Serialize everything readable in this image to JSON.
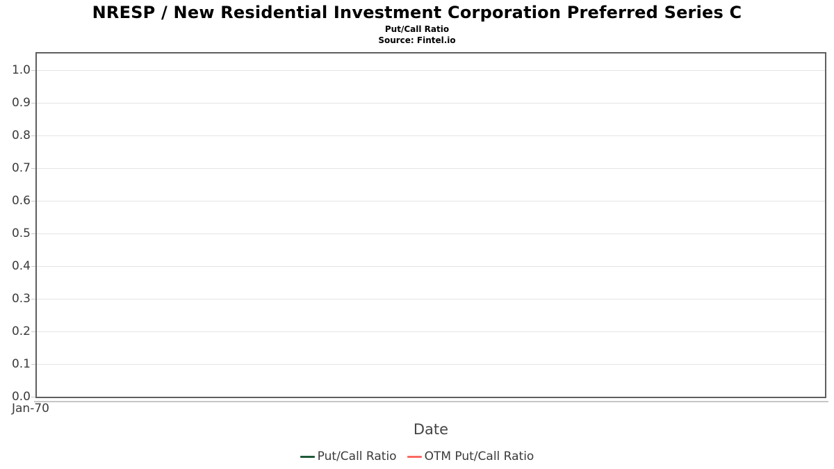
{
  "chart_data": {
    "type": "line",
    "title": "NRESP / New Residential Investment Corporation Preferred Series C",
    "subtitle": "Put/Call Ratio",
    "source": "Source: Fintel.io",
    "xlabel": "Date",
    "x_tick_labels": [
      "Jan-70"
    ],
    "y_ticks": [
      0.0,
      0.1,
      0.2,
      0.3,
      0.4,
      0.5,
      0.6,
      0.7,
      0.8,
      0.9,
      1.0
    ],
    "ylim": [
      0,
      1.05
    ],
    "grid": "horizontal-only",
    "legend_position": "bottom",
    "series": [
      {
        "name": "Put/Call Ratio",
        "color": "#1e5a37",
        "points": []
      },
      {
        "name": "OTM Put/Call Ratio",
        "color": "#fb6a62",
        "points": []
      }
    ]
  },
  "style": {
    "background": "#ffffff",
    "plot_border_color": "#5e5e5e",
    "gridline_color": "#e4e4e4",
    "tick_color": "#c9c9c9",
    "axis_line_color": "#c6c6c6",
    "text_color": "#3a3a3a",
    "title_color": "#000000"
  }
}
